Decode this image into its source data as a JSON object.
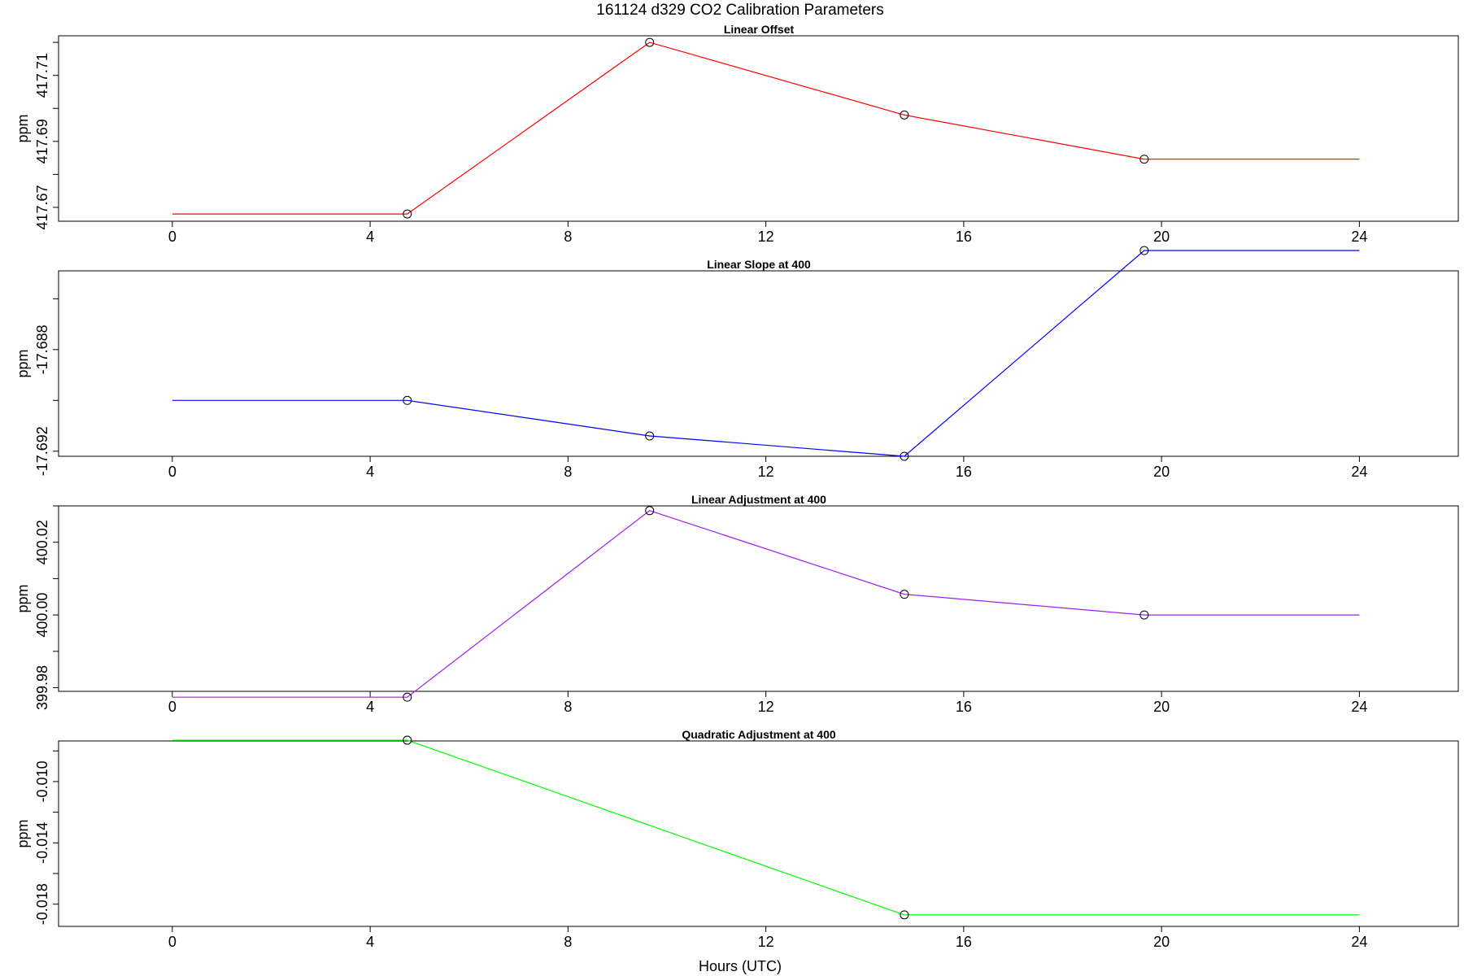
{
  "figure": {
    "title": "161124   d329   CO2 Calibration Parameters",
    "xlabel": "Hours (UTC)"
  },
  "chart_data": [
    {
      "type": "line",
      "title": "Linear Offset",
      "ylabel": "ppm",
      "color": "#ff0000",
      "xlim": [
        -2.3,
        26.0
      ],
      "ylim": [
        417.6658,
        417.722
      ],
      "xticks": [
        0,
        4,
        8,
        12,
        16,
        20,
        24
      ],
      "yticks": [
        417.67,
        417.68,
        417.69,
        417.7,
        417.71,
        417.72
      ],
      "ytick_labels": [
        {
          "value": 417.67,
          "label": "417.67"
        },
        {
          "value": 417.69,
          "label": "417.69"
        },
        {
          "value": 417.71,
          "label": "417.71"
        }
      ],
      "line_x": [
        0,
        4.75,
        9.65,
        14.8,
        19.65,
        24
      ],
      "line_y": [
        417.668,
        417.668,
        417.72,
        417.698,
        417.6846,
        417.6846
      ],
      "points_x": [
        4.75,
        9.65,
        14.8,
        19.65
      ],
      "points_y": [
        417.668,
        417.72,
        417.698,
        417.6846
      ]
    },
    {
      "type": "line",
      "title": "Linear Slope at 400",
      "ylabel": "ppm",
      "color": "#0000ff",
      "xlim": [
        -2.3,
        26.0
      ],
      "ylim": [
        -17.6922,
        -17.6849
      ],
      "xticks": [
        0,
        4,
        8,
        12,
        16,
        20,
        24
      ],
      "yticks": [
        -17.692,
        -17.69,
        -17.688,
        -17.686
      ],
      "ytick_labels": [
        {
          "value": -17.692,
          "label": "-17.692"
        },
        {
          "value": -17.688,
          "label": "-17.688"
        }
      ],
      "line_x": [
        0,
        4.75,
        9.65,
        14.8,
        19.65,
        24
      ],
      "line_y": [
        -17.69,
        -17.69,
        -17.6914,
        -17.6922,
        -17.6841,
        -17.6841
      ],
      "points_x": [
        4.75,
        9.65,
        14.8,
        19.65
      ],
      "points_y": [
        -17.69,
        -17.6914,
        -17.6922,
        -17.6841
      ]
    },
    {
      "type": "line",
      "title": "Linear Adjustment at 400",
      "ylabel": "ppm",
      "color": "#a020f0",
      "xlim": [
        -2.3,
        26.0
      ],
      "ylim": [
        399.979,
        400.03
      ],
      "xticks": [
        0,
        4,
        8,
        12,
        16,
        20,
        24
      ],
      "yticks": [
        399.98,
        399.99,
        400.0,
        400.01,
        400.02,
        400.03
      ],
      "ytick_labels": [
        {
          "value": 399.98,
          "label": "399.98"
        },
        {
          "value": 400.0,
          "label": "400.00"
        },
        {
          "value": 400.02,
          "label": "400.02"
        }
      ],
      "line_x": [
        0,
        4.75,
        9.65,
        14.8,
        19.65,
        24
      ],
      "line_y": [
        399.9774,
        399.9774,
        400.0287,
        400.0057,
        400.0,
        400.0
      ],
      "points_x": [
        4.75,
        9.65,
        14.8,
        19.65
      ],
      "points_y": [
        399.9774,
        400.0287,
        400.0057,
        400.0
      ]
    },
    {
      "type": "line",
      "title": "Quadratic Adjustment at 400",
      "ylabel": "ppm",
      "color": "#00ff00",
      "xlim": [
        -2.3,
        26.0
      ],
      "ylim": [
        -0.01945,
        -0.00735
      ],
      "xticks": [
        0,
        4,
        8,
        12,
        16,
        20,
        24
      ],
      "yticks": [
        -0.018,
        -0.016,
        -0.014,
        -0.012,
        -0.01,
        -0.008
      ],
      "ytick_labels": [
        {
          "value": -0.018,
          "label": "-0.018"
        },
        {
          "value": -0.014,
          "label": "-0.014"
        },
        {
          "value": -0.01,
          "label": "-0.010"
        }
      ],
      "line_x": [
        0,
        4.75,
        14.8,
        24
      ],
      "line_y": [
        -0.0073,
        -0.0073,
        -0.0187,
        -0.0187
      ],
      "points_x": [
        4.75,
        14.8
      ],
      "points_y": [
        -0.0073,
        -0.0187
      ]
    }
  ]
}
